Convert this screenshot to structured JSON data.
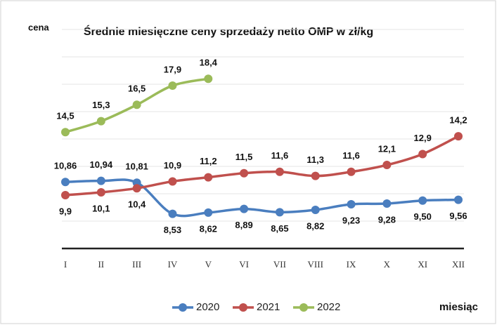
{
  "chart_data": {
    "type": "line",
    "title": "Średnie miesięczne ceny sprzedaży netto OMP w zł/kg",
    "y_label": "cena",
    "x_label": "miesiąc",
    "categories": [
      "I",
      "II",
      "III",
      "IV",
      "V",
      "VI",
      "VII",
      "VIII",
      "IX",
      "X",
      "XI",
      "XII"
    ],
    "series": [
      {
        "name": "2020",
        "color": "#4a7ebf",
        "values": [
          10.86,
          10.94,
          10.81,
          8.53,
          8.62,
          8.89,
          8.65,
          8.82,
          9.23,
          9.28,
          9.5,
          9.56
        ],
        "value_labels": [
          "10,86",
          "10,94",
          "10,81",
          "8,53",
          "8,62",
          "8,89",
          "8,65",
          "8,82",
          "9,23",
          "9,28",
          "9,50",
          "9,56"
        ]
      },
      {
        "name": "2021",
        "color": "#c0504d",
        "values": [
          9.9,
          10.1,
          10.4,
          10.9,
          11.2,
          11.5,
          11.6,
          11.3,
          11.6,
          12.1,
          12.9,
          14.2
        ],
        "value_labels": [
          "9,9",
          "10,1",
          "10,4",
          "10,9",
          "11,2",
          "11,5",
          "11,6",
          "11,3",
          "11,6",
          "12,1",
          "12,9",
          "14,2"
        ]
      },
      {
        "name": "2022",
        "color": "#9bbb59",
        "values": [
          14.5,
          15.3,
          16.5,
          17.9,
          18.4,
          null,
          null,
          null,
          null,
          null,
          null,
          null
        ],
        "value_labels": [
          "14,5",
          "15,3",
          "16,5",
          "17,9",
          "18,4",
          null,
          null,
          null,
          null,
          null,
          null,
          null
        ]
      }
    ],
    "ylim": [
      6,
      22
    ],
    "yticks": [
      8,
      10,
      12,
      14,
      16,
      18,
      20,
      22
    ],
    "grid": true,
    "legend": "bottom"
  }
}
